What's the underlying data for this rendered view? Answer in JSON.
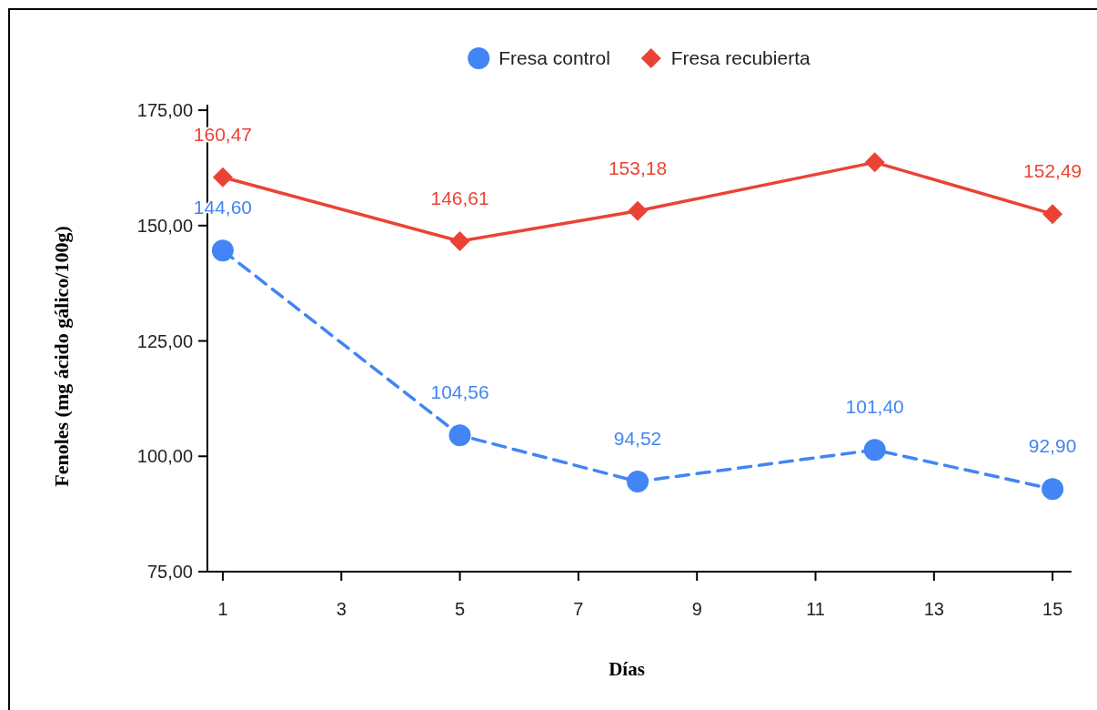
{
  "chart_data": {
    "type": "line",
    "xlabel": "Días",
    "ylabel": "Fenoles (mg ácido gálico/100g)",
    "x": [
      1,
      5,
      8,
      12,
      15
    ],
    "series": [
      {
        "name": "Fresa control",
        "color": "#4285f4",
        "values": [
          144.6,
          104.56,
          94.52,
          101.4,
          92.9
        ],
        "marker": "circle",
        "line_style": "dashed",
        "value_labels": [
          "144,60",
          "104,56",
          "94,52",
          "101,40",
          "92,90"
        ]
      },
      {
        "name": "Fresa recubierta",
        "color": "#ea4335",
        "values": [
          160.47,
          146.61,
          153.18,
          163.7,
          152.49
        ],
        "marker": "diamond",
        "line_style": "solid",
        "value_labels": [
          "160,47",
          "146,61",
          "153,18",
          null,
          "152,49"
        ]
      }
    ],
    "xlim": [
      0.74,
      15.32
    ],
    "xticks": [
      1,
      3,
      5,
      7,
      9,
      11,
      13,
      15
    ],
    "ylim": [
      75,
      176.2
    ],
    "yticks": [
      {
        "value": 75,
        "label": "75,00"
      },
      {
        "value": 100,
        "label": "100,00"
      },
      {
        "value": 125,
        "label": "125,00"
      },
      {
        "value": 150,
        "label": "150,00"
      },
      {
        "value": 175,
        "label": "175,00"
      }
    ],
    "grid": false,
    "legend": "top"
  }
}
